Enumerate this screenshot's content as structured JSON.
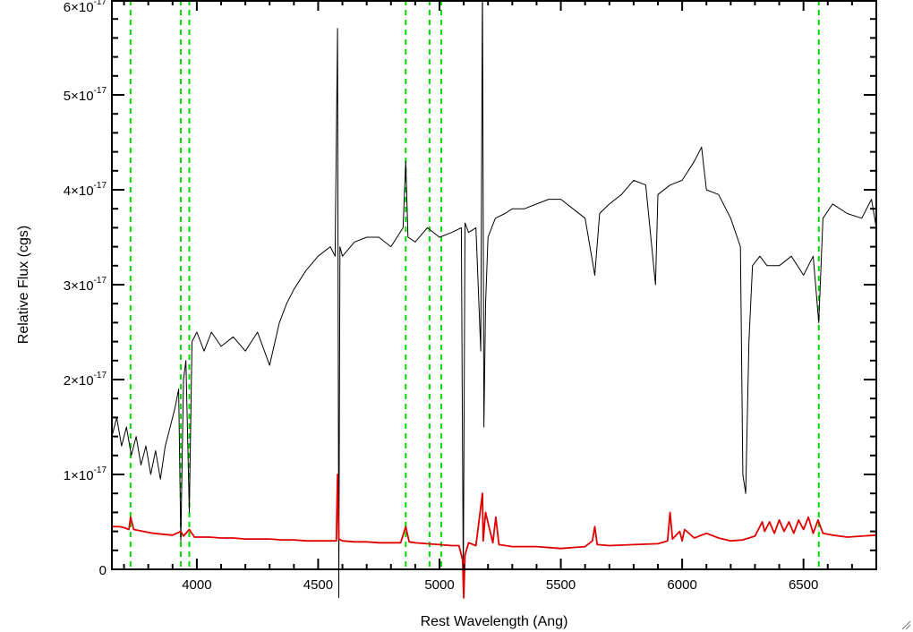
{
  "chart_data": {
    "type": "line",
    "title": "",
    "xlabel": "Rest Wavelength (Ang)",
    "ylabel": "Relative Flux (cgs)",
    "xlim": [
      3650,
      6800
    ],
    "ylim": [
      0,
      6e-17
    ],
    "x_ticks": [
      {
        "value": 4000,
        "label": "4000"
      },
      {
        "value": 4500,
        "label": "4500"
      },
      {
        "value": 5000,
        "label": "5000"
      },
      {
        "value": 5500,
        "label": "5500"
      },
      {
        "value": 6000,
        "label": "6000"
      },
      {
        "value": 6500,
        "label": "6500"
      }
    ],
    "y_ticks": [
      {
        "value": 0,
        "label": "0",
        "exp": ""
      },
      {
        "value": 1e-17,
        "label": "1×10",
        "exp": "-17"
      },
      {
        "value": 2e-17,
        "label": "2×10",
        "exp": "-17"
      },
      {
        "value": 3e-17,
        "label": "3×10",
        "exp": "-17"
      },
      {
        "value": 4e-17,
        "label": "4×10",
        "exp": "-17"
      },
      {
        "value": 5e-17,
        "label": "5×10",
        "exp": "-17"
      },
      {
        "value": 6e-17,
        "label": "6×10",
        "exp": "-17"
      }
    ],
    "grid": false,
    "legend": "none",
    "vertical_markers": {
      "color": "#00dd00",
      "style": "dashed",
      "x": [
        3727,
        3934,
        3969,
        4861,
        4959,
        5007,
        6563
      ]
    },
    "series": [
      {
        "color": "#000000",
        "x": [
          3650,
          3670,
          3690,
          3710,
          3730,
          3750,
          3770,
          3790,
          3810,
          3830,
          3850,
          3870,
          3890,
          3910,
          3925,
          3934,
          3945,
          3955,
          3969,
          3980,
          4000,
          4030,
          4060,
          4100,
          4150,
          4200,
          4250,
          4300,
          4340,
          4370,
          4400,
          4450,
          4500,
          4550,
          4570,
          4580,
          4585,
          4590,
          4600,
          4650,
          4700,
          4750,
          4800,
          4850,
          4861,
          4870,
          4900,
          4950,
          5000,
          5050,
          5090,
          5098,
          5105,
          5120,
          5150,
          5170,
          5177,
          5183,
          5190,
          5200,
          5230,
          5270,
          5300,
          5350,
          5400,
          5450,
          5500,
          5550,
          5600,
          5640,
          5660,
          5700,
          5750,
          5800,
          5850,
          5890,
          5900,
          5950,
          6000,
          6050,
          6080,
          6100,
          6150,
          6200,
          6240,
          6250,
          6262,
          6275,
          6290,
          6320,
          6350,
          6400,
          6450,
          6500,
          6540,
          6563,
          6580,
          6620,
          6680,
          6740,
          6780,
          6800
        ],
        "y": [
          1.4e-17,
          1.6e-17,
          1.3e-17,
          1.5e-17,
          1.2e-17,
          1.4e-17,
          1.1e-17,
          1.3e-17,
          1e-17,
          1.25e-17,
          9.5e-18,
          1.3e-17,
          1.5e-17,
          1.7e-17,
          1.9e-17,
          3e-18,
          2e-17,
          2.2e-17,
          6e-18,
          2.4e-17,
          2.5e-17,
          2.3e-17,
          2.5e-17,
          2.35e-17,
          2.45e-17,
          2.3e-17,
          2.5e-17,
          2.15e-17,
          2.6e-17,
          2.8e-17,
          2.95e-17,
          3.15e-17,
          3.3e-17,
          3.4e-17,
          3.3e-17,
          5.7e-17,
          -3e-18,
          3.4e-17,
          3.3e-17,
          3.45e-17,
          3.5e-17,
          3.5e-17,
          3.4e-17,
          3.6e-17,
          4.3e-17,
          3.5e-17,
          3.45e-17,
          3.6e-17,
          3.5e-17,
          3.55e-17,
          3.6e-17,
          -2e-18,
          3.65e-17,
          3.55e-17,
          3.6e-17,
          2.3e-17,
          6.2e-17,
          1.5e-17,
          2.8e-17,
          3.5e-17,
          3.7e-17,
          3.75e-17,
          3.8e-17,
          3.8e-17,
          3.85e-17,
          3.9e-17,
          3.9e-17,
          3.8e-17,
          3.7e-17,
          3.1e-17,
          3.75e-17,
          3.85e-17,
          3.95e-17,
          4.1e-17,
          4.05e-17,
          3e-17,
          3.95e-17,
          4.05e-17,
          4.1e-17,
          4.3e-17,
          4.45e-17,
          4e-17,
          3.95e-17,
          3.7e-17,
          3.4e-17,
          1e-17,
          8e-18,
          2.4e-17,
          3.2e-17,
          3.3e-17,
          3.2e-17,
          3.2e-17,
          3.3e-17,
          3.1e-17,
          3.3e-17,
          2.6e-17,
          3.7e-17,
          3.85e-17,
          3.75e-17,
          3.7e-17,
          3.9e-17,
          3.6e-17
        ]
      },
      {
        "color": "#e00000",
        "x": [
          3650,
          3680,
          3700,
          3720,
          3727,
          3740,
          3780,
          3820,
          3860,
          3900,
          3934,
          3945,
          3969,
          3990,
          4050,
          4100,
          4150,
          4200,
          4250,
          4300,
          4350,
          4400,
          4450,
          4500,
          4550,
          4575,
          4580,
          4585,
          4600,
          4650,
          4700,
          4750,
          4800,
          4840,
          4861,
          4875,
          4900,
          4950,
          5000,
          5050,
          5080,
          5095,
          5100,
          5105,
          5120,
          5150,
          5177,
          5180,
          5190,
          5220,
          5232,
          5245,
          5300,
          5400,
          5500,
          5550,
          5600,
          5630,
          5640,
          5650,
          5700,
          5800,
          5900,
          5940,
          5950,
          5960,
          5990,
          6000,
          6010,
          6050,
          6100,
          6150,
          6200,
          6250,
          6300,
          6330,
          6340,
          6360,
          6380,
          6400,
          6420,
          6440,
          6460,
          6480,
          6500,
          6520,
          6540,
          6560,
          6580,
          6620,
          6680,
          6740,
          6800
        ],
        "y": [
          4.5e-18,
          4.5e-18,
          4.4e-18,
          4.2e-18,
          5.5e-18,
          4.2e-18,
          4e-18,
          3.8e-18,
          3.7e-18,
          3.6e-18,
          4e-18,
          3.5e-18,
          4.2e-18,
          3.4e-18,
          3.4e-18,
          3.3e-18,
          3.3e-18,
          3.2e-18,
          3.2e-18,
          3.2e-18,
          3.1e-18,
          3.1e-18,
          3e-18,
          3e-18,
          3e-18,
          3e-18,
          1e-17,
          3.2e-18,
          3e-18,
          2.9e-18,
          2.9e-18,
          2.8e-18,
          2.8e-18,
          2.8e-18,
          4.5e-18,
          2.9e-18,
          2.8e-18,
          2.7e-18,
          2.6e-18,
          2.5e-18,
          2.5e-18,
          1e-18,
          -3e-18,
          1.5e-18,
          2.8e-18,
          2.5e-18,
          8e-18,
          3e-18,
          6e-18,
          2.8e-18,
          5.5e-18,
          2.6e-18,
          2.4e-18,
          2.4e-18,
          2.2e-18,
          2.3e-18,
          2.4e-18,
          3e-18,
          4.5e-18,
          2.6e-18,
          2.5e-18,
          2.6e-18,
          2.7e-18,
          3e-18,
          6e-18,
          3.2e-18,
          4e-18,
          3e-18,
          4.2e-18,
          3.3e-18,
          3.8e-18,
          3.3e-18,
          3e-18,
          3.1e-18,
          3.5e-18,
          5e-18,
          4e-18,
          5e-18,
          3.8e-18,
          5.2e-18,
          4e-18,
          5e-18,
          3.8e-18,
          5.2e-18,
          4.2e-18,
          5.5e-18,
          3.8e-18,
          5.2e-18,
          3.8e-18,
          3.6e-18,
          3.4e-18,
          3.5e-18,
          3.6e-18
        ]
      }
    ]
  }
}
